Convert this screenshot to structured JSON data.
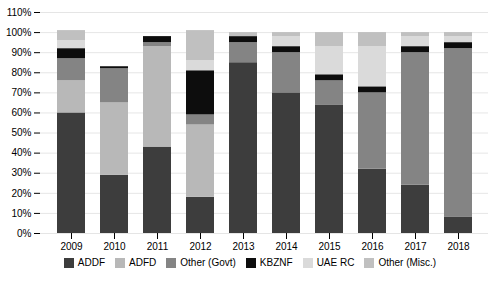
{
  "chart_data": {
    "type": "bar",
    "stacked": true,
    "grid": true,
    "legend": "bottom",
    "categories": [
      "2009",
      "2010",
      "2011",
      "2012",
      "2013",
      "2014",
      "2015",
      "2016",
      "2017",
      "2018"
    ],
    "series": [
      {
        "name": "ADDF",
        "color": "#3d3d3d",
        "values": [
          60,
          29,
          43,
          18,
          85,
          70,
          64,
          32,
          24,
          8
        ]
      },
      {
        "name": "ADFD",
        "color": "#b8b8b8",
        "values": [
          16,
          36,
          50,
          36,
          0,
          0,
          0,
          0,
          0,
          0
        ]
      },
      {
        "name": "Other (Govt)",
        "color": "#848484",
        "values": [
          11,
          17,
          2,
          5,
          10,
          20,
          12,
          38,
          66,
          84
        ]
      },
      {
        "name": "KBZNF",
        "color": "#0d0d0d",
        "values": [
          5,
          1,
          3,
          22,
          3,
          3,
          3,
          3,
          3,
          3
        ]
      },
      {
        "name": "UAE RC",
        "color": "#dadada",
        "values": [
          4,
          0,
          0,
          5,
          0,
          5,
          14,
          20,
          5,
          3
        ]
      },
      {
        "name": "Other (Misc.)",
        "color": "#c0c0c0",
        "values": [
          5,
          0,
          0,
          15,
          2,
          2,
          7,
          7,
          2,
          2
        ]
      }
    ],
    "ylim": [
      0,
      110
    ],
    "yticks": [
      {
        "value": 0,
        "label": "0%"
      },
      {
        "value": 10,
        "label": "10%"
      },
      {
        "value": 20,
        "label": "20%"
      },
      {
        "value": 30,
        "label": "30%"
      },
      {
        "value": 40,
        "label": "40%"
      },
      {
        "value": 50,
        "label": "50%"
      },
      {
        "value": 60,
        "label": "60%"
      },
      {
        "value": 70,
        "label": "70%"
      },
      {
        "value": 80,
        "label": "80%"
      },
      {
        "value": 90,
        "label": "90%"
      },
      {
        "value": 100,
        "label": "100%"
      },
      {
        "value": 110,
        "label": "110%"
      }
    ]
  }
}
